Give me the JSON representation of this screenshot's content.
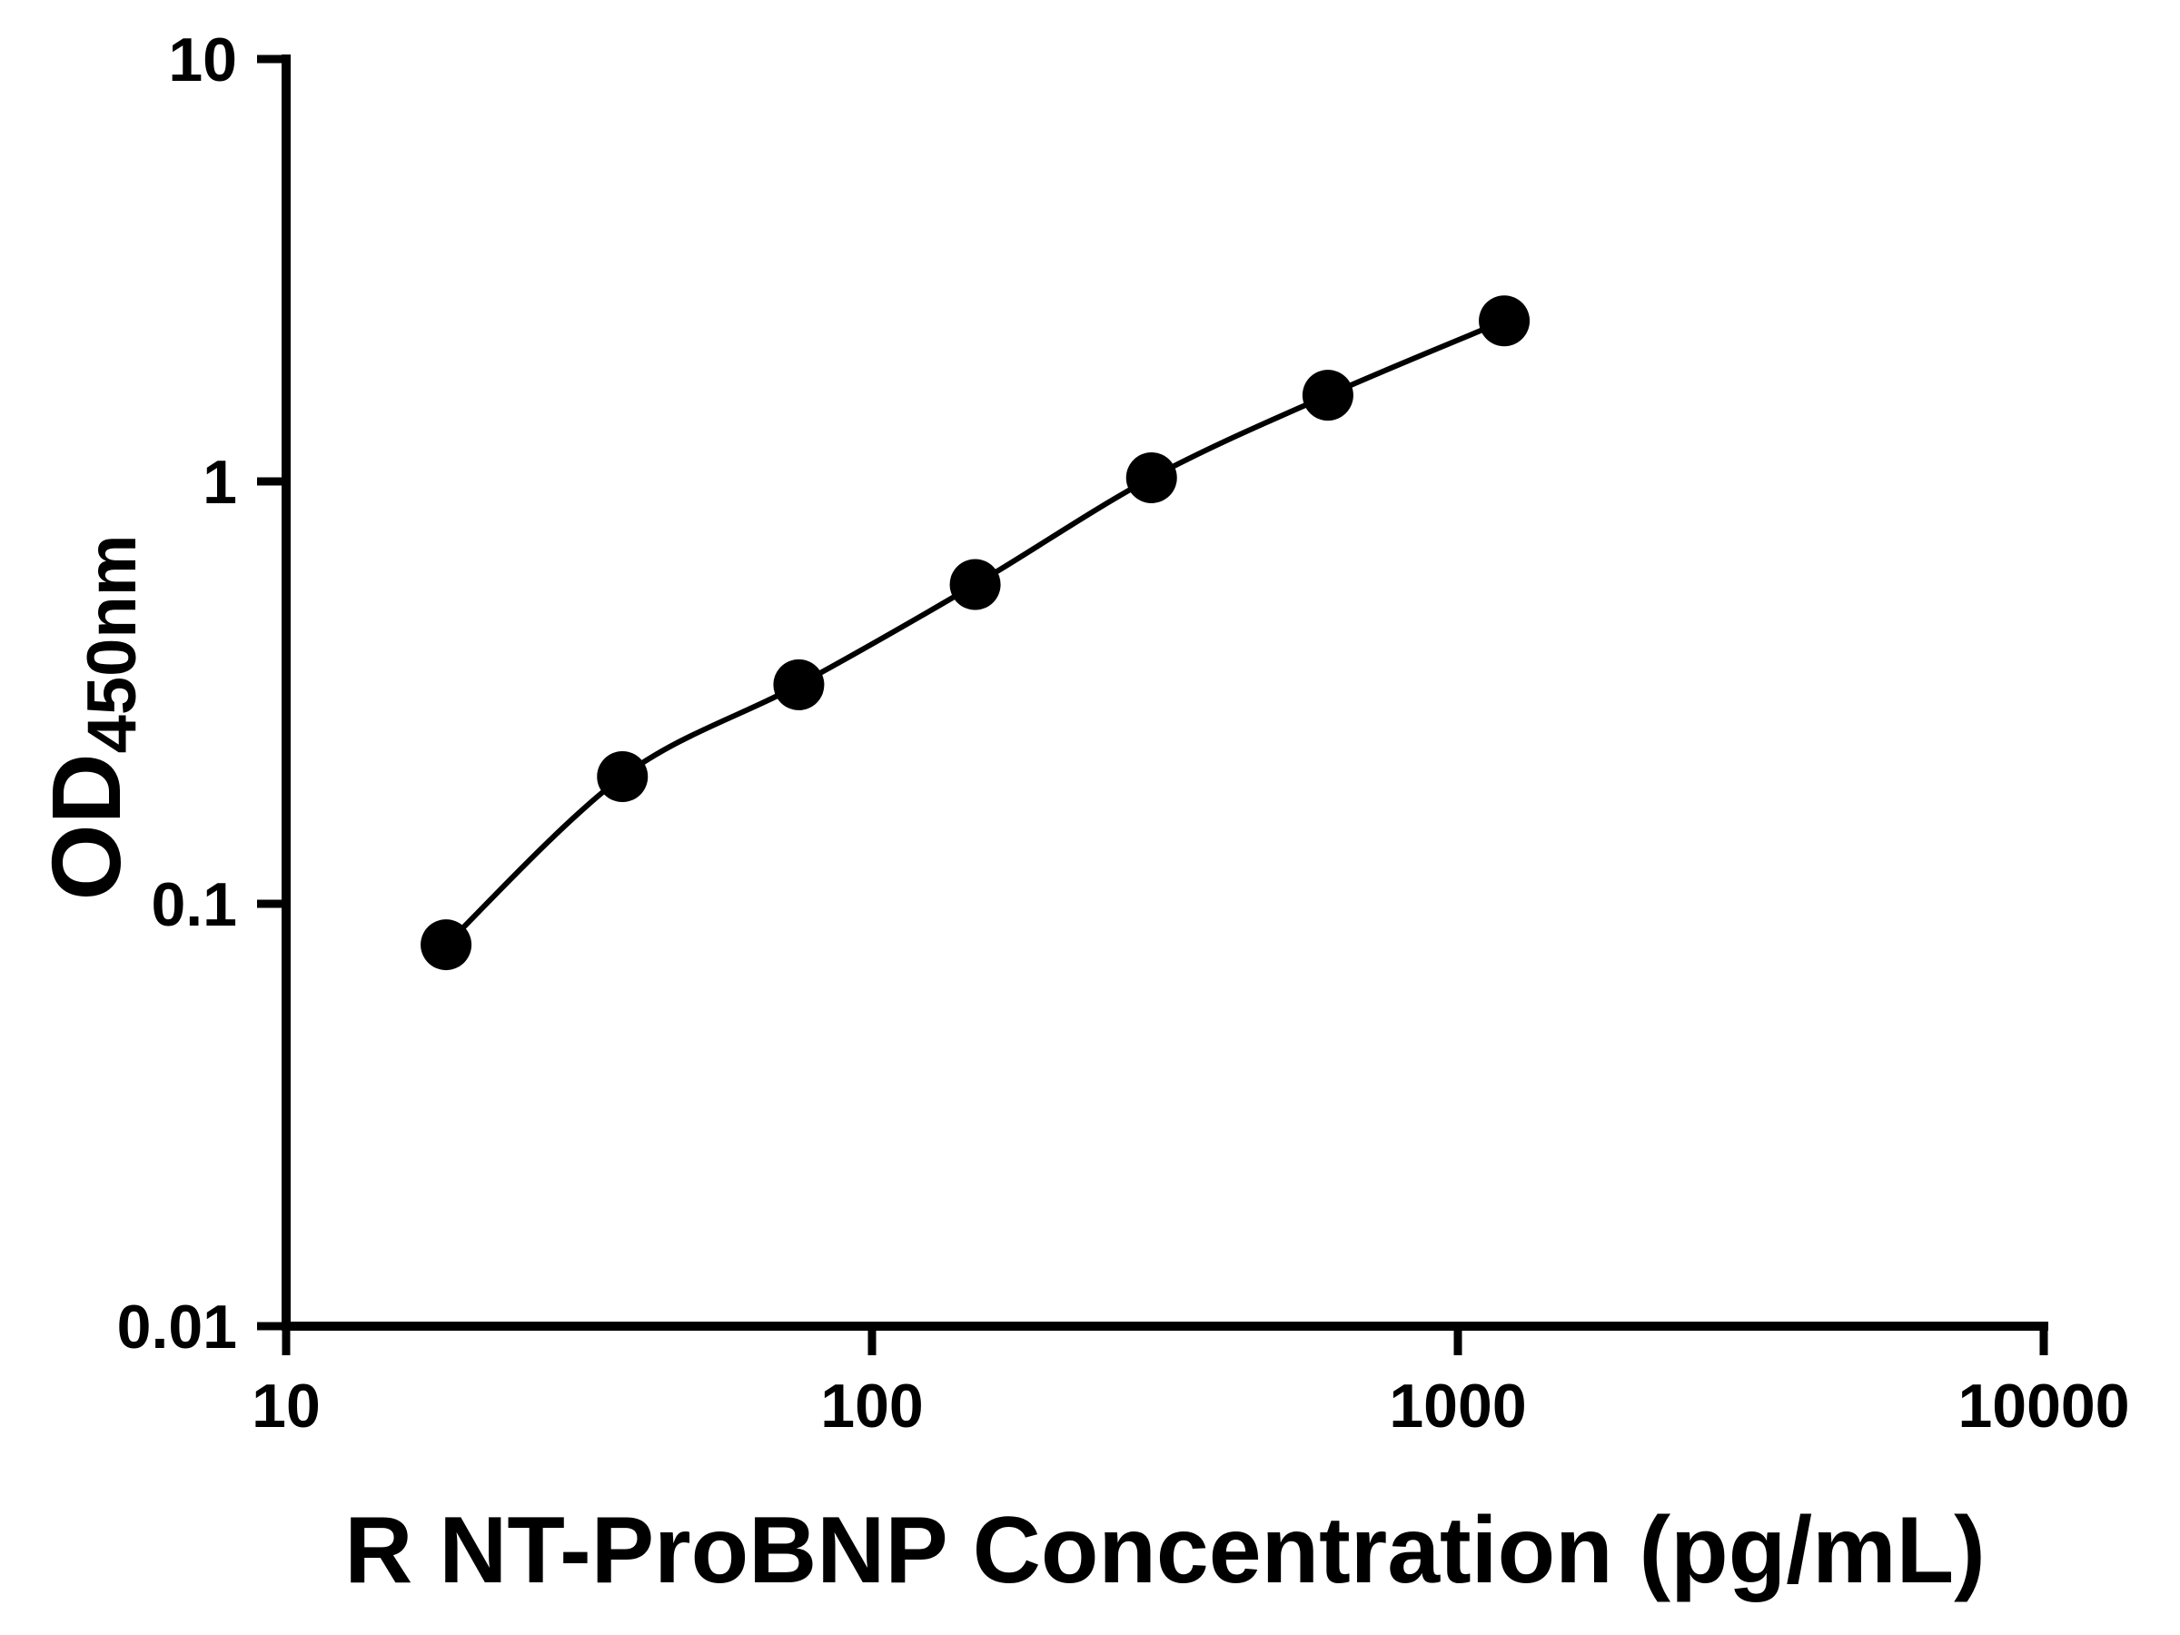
{
  "chart_data": {
    "type": "scatter",
    "subtype": "standard-curve-with-fitted-smooth-line",
    "title": "",
    "xlabel": "R NT-ProBNP Concentration (pg/mL)",
    "ylabel_main": "OD",
    "ylabel_subscript": "450nm",
    "x_scale": "log10",
    "y_scale": "log10",
    "xlim": [
      10,
      10000
    ],
    "ylim": [
      0.01,
      10
    ],
    "x_ticks": [
      10,
      100,
      1000,
      10000
    ],
    "x_tick_labels": [
      "10",
      "100",
      "1000",
      "10000"
    ],
    "y_ticks": [
      0.01,
      0.1,
      1,
      10
    ],
    "y_tick_labels": [
      "0.01",
      "0.1",
      "1",
      "10"
    ],
    "grid": false,
    "legend": "none",
    "series": [
      {
        "marker": "filled-circle",
        "line": "smooth",
        "color": "#000000",
        "points": [
          {
            "x": 18.75,
            "y": 0.08
          },
          {
            "x": 37.5,
            "y": 0.2
          },
          {
            "x": 75,
            "y": 0.33
          },
          {
            "x": 150,
            "y": 0.57
          },
          {
            "x": 300,
            "y": 1.02
          },
          {
            "x": 600,
            "y": 1.6
          },
          {
            "x": 1200,
            "y": 2.4
          }
        ]
      }
    ],
    "colors": {
      "axis": "#000000",
      "text": "#000000",
      "marker": "#000000",
      "line": "#000000",
      "background": "#ffffff"
    }
  }
}
